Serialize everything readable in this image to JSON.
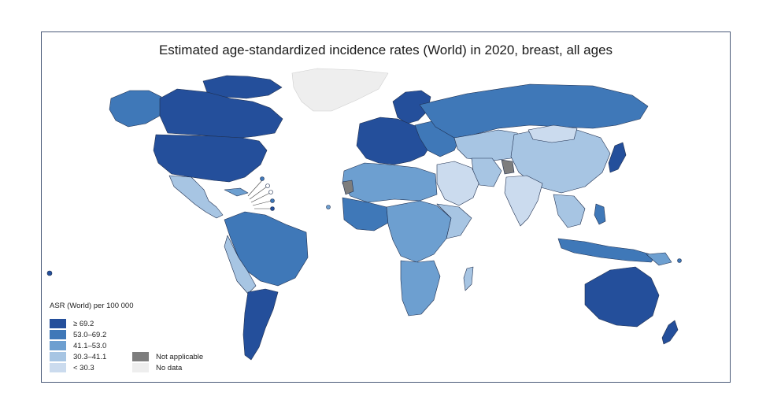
{
  "title": "Estimated age-standardized incidence rates (World) in 2020, breast, all ages",
  "legend": {
    "title": "ASR (World) per 100 000",
    "classes": [
      {
        "label": "≥ 69.2",
        "color": "#244f9b"
      },
      {
        "label": "53.0–69.2",
        "color": "#3f78b8"
      },
      {
        "label": "41.1–53.0",
        "color": "#6d9fd0"
      },
      {
        "label": "30.3–41.1",
        "color": "#a7c5e3"
      },
      {
        "label": "< 30.3",
        "color": "#cbdbee"
      }
    ],
    "special": [
      {
        "label": "Not applicable",
        "color": "#7d7d7d"
      },
      {
        "label": "No data",
        "color": "#eeeeee"
      }
    ]
  }
}
